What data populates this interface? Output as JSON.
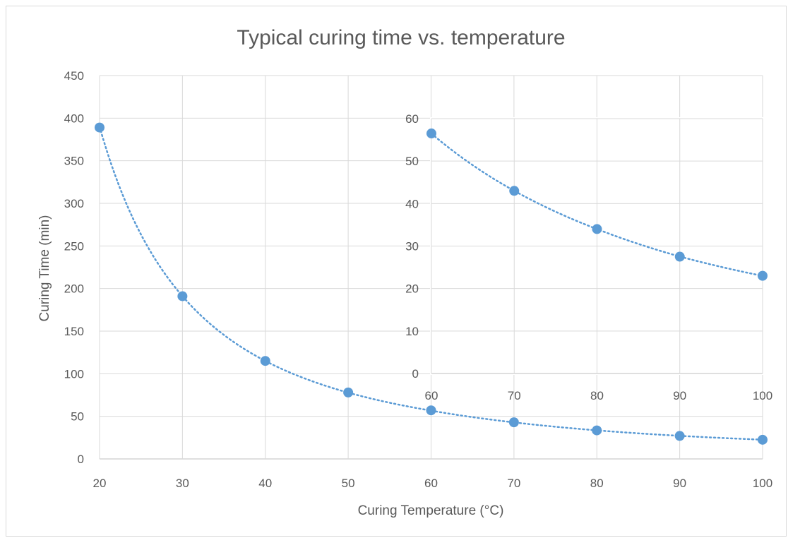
{
  "chart_data": [
    {
      "type": "scatter",
      "title": "Typical curing time vs. temperature",
      "xlabel": "Curing Temperature (°C)",
      "ylabel": "Curing Time (min)",
      "xlim": [
        20,
        100
      ],
      "ylim": [
        0,
        450
      ],
      "x_ticks": [
        20,
        30,
        40,
        50,
        60,
        70,
        80,
        90,
        100
      ],
      "y_ticks": [
        0,
        50,
        100,
        150,
        200,
        250,
        300,
        350,
        400,
        450
      ],
      "grid": true,
      "trendline": "dotted",
      "color": "#5b9bd5",
      "series": [
        {
          "x": [
            20,
            30,
            40,
            50,
            60,
            70,
            80,
            90,
            100
          ],
          "y": [
            389,
            191,
            115,
            78,
            57,
            43,
            33.5,
            27,
            22.5
          ]
        }
      ]
    },
    {
      "type": "scatter",
      "title": "",
      "xlabel": "",
      "ylabel": "",
      "xlim": [
        60,
        100
      ],
      "ylim": [
        0,
        60
      ],
      "x_ticks": [
        60,
        70,
        80,
        90,
        100
      ],
      "y_ticks": [
        0,
        10,
        20,
        30,
        40,
        50,
        60
      ],
      "grid": true,
      "trendline": "dotted",
      "color": "#5b9bd5",
      "series": [
        {
          "x": [
            60,
            70,
            80,
            90,
            100
          ],
          "y": [
            56.5,
            43,
            34,
            27.5,
            23
          ]
        }
      ]
    }
  ]
}
